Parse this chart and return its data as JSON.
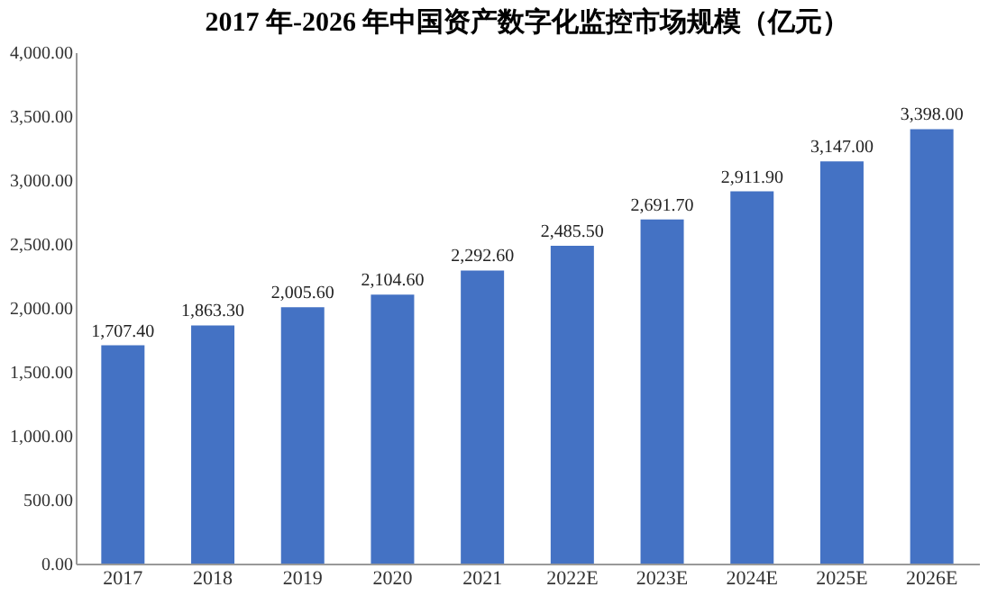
{
  "chart_data": {
    "type": "bar",
    "title": "2017 年-2026 年中国资产数字化监控市场规模（亿元）",
    "categories": [
      "2017",
      "2018",
      "2019",
      "2020",
      "2021",
      "2022E",
      "2023E",
      "2024E",
      "2025E",
      "2026E"
    ],
    "values": [
      1707.4,
      1863.3,
      2005.6,
      2104.6,
      2292.6,
      2485.5,
      2691.7,
      2911.9,
      3147.0,
      3398.0
    ],
    "value_labels": [
      "1,707.40",
      "1,863.30",
      "2,005.60",
      "2,104.60",
      "2,292.60",
      "2,485.50",
      "2,691.70",
      "2,911.90",
      "3,147.00",
      "3,398.00"
    ],
    "color": "#4472c4",
    "ylim": [
      0,
      4000
    ],
    "yticks": [
      {
        "value": 0,
        "label": "0.00"
      },
      {
        "value": 500,
        "label": "500.00"
      },
      {
        "value": 1000,
        "label": "1,000.00"
      },
      {
        "value": 1500,
        "label": "1,500.00"
      },
      {
        "value": 2000,
        "label": "2,000.00"
      },
      {
        "value": 2500,
        "label": "2,500.00"
      },
      {
        "value": 3000,
        "label": "3,000.00"
      },
      {
        "value": 3500,
        "label": "3,500.00"
      },
      {
        "value": 4000,
        "label": "4,000.00"
      }
    ],
    "grid": false
  }
}
